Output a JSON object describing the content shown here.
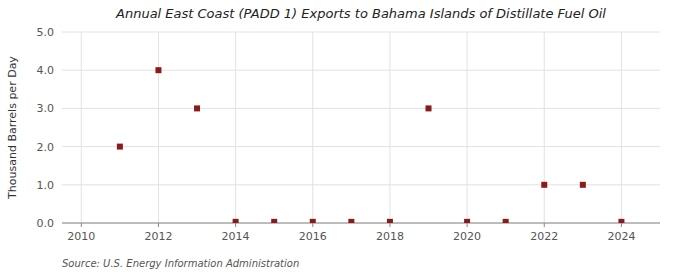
{
  "chart_data": {
    "type": "scatter",
    "title": "Annual East Coast (PADD 1) Exports to Bahama Islands of Distillate Fuel Oil",
    "ylabel": "Thousand Barrels per Day",
    "annotations": [
      "Source: U.S. Energy Information Administration"
    ],
    "x": [
      2011,
      2012,
      2013,
      2014,
      2015,
      2016,
      2017,
      2018,
      2019,
      2020,
      2021,
      2022,
      2023,
      2024
    ],
    "values": [
      2.0,
      4.0,
      3.0,
      0.03,
      0.03,
      0.03,
      0.03,
      0.03,
      3.0,
      0.03,
      0.03,
      1.0,
      1.0,
      0.03
    ],
    "color": "#8b1a1a",
    "marker": "square",
    "xlim": [
      2009.5,
      2025
    ],
    "xticks": [
      2010,
      2012,
      2014,
      2016,
      2018,
      2020,
      2022,
      2024
    ],
    "ylim": [
      0,
      5.0
    ],
    "yticks": [
      {
        "value": 0.0,
        "label": "0.0"
      },
      {
        "value": 1.0,
        "label": "1.0"
      },
      {
        "value": 2.0,
        "label": "2.0"
      },
      {
        "value": 3.0,
        "label": "3.0"
      },
      {
        "value": 4.0,
        "label": "4.0"
      },
      {
        "value": 5.0,
        "label": "5.0"
      }
    ],
    "grid": true
  }
}
